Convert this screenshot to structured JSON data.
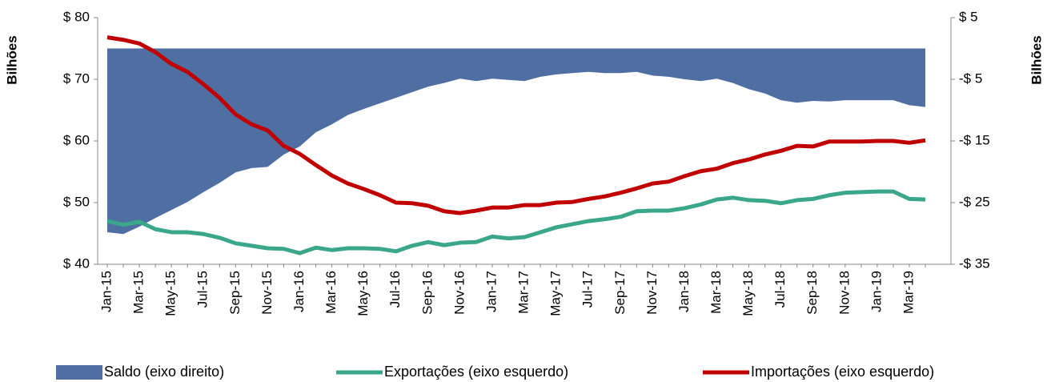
{
  "chart_data": {
    "type": "line",
    "y_label": "Bilhões",
    "y2_label": "Bilhões",
    "categories": [
      "Jan-15",
      null,
      "Mar-15",
      null,
      "May-15",
      null,
      "Jul-15",
      null,
      "Sep-15",
      null,
      "Nov-15",
      null,
      "Jan-16",
      null,
      "Mar-16",
      null,
      "May-16",
      null,
      "Jul-16",
      null,
      "Sep-16",
      null,
      "Nov-16",
      null,
      "Jan-17",
      null,
      "Mar-17",
      null,
      "May-17",
      null,
      "Jul-17",
      null,
      "Sep-17",
      null,
      "Nov-17",
      null,
      "Jan-18",
      null,
      "Mar-18",
      null,
      "May-18",
      null,
      "Jul-18",
      null,
      "Sep-18",
      null,
      "Nov-18",
      null,
      "Jan-19",
      null,
      "Mar-19",
      null
    ],
    "ylim": [
      40,
      80
    ],
    "yticks": [
      {
        "value": 40,
        "label": "$ 40"
      },
      {
        "value": 50,
        "label": "$ 50"
      },
      {
        "value": 60,
        "label": "$ 60"
      },
      {
        "value": 70,
        "label": "$ 70"
      },
      {
        "value": 80,
        "label": "$ 80"
      }
    ],
    "y2lim": [
      -35,
      5
    ],
    "y2ticks": [
      {
        "value": -35,
        "label": "-$ 35"
      },
      {
        "value": -25,
        "label": "-$ 25"
      },
      {
        "value": -15,
        "label": "-$ 15"
      },
      {
        "value": -5,
        "label": "-$ 5"
      },
      {
        "value": 5,
        "label": "$ 5"
      }
    ],
    "legend": "bottom",
    "series": [
      {
        "name": "Saldo (eixo direito)",
        "type": "area",
        "axis": "y2",
        "color": "#4f6fa3",
        "values": [
          -29.8,
          -30.1,
          -28.9,
          -27.5,
          -26.2,
          -24.9,
          -23.3,
          -21.8,
          -20.1,
          -19.4,
          -19.2,
          -17.2,
          -15.9,
          -13.6,
          -12.3,
          -10.8,
          -9.8,
          -8.9,
          -8.0,
          -7.1,
          -6.2,
          -5.6,
          -4.9,
          -5.3,
          -4.9,
          -5.1,
          -5.3,
          -4.6,
          -4.2,
          -4.0,
          -3.8,
          -4.0,
          -4.0,
          -3.8,
          -4.4,
          -4.6,
          -5.0,
          -5.3,
          -4.9,
          -5.6,
          -6.6,
          -7.3,
          -8.4,
          -8.8,
          -8.5,
          -8.6,
          -8.4,
          -8.4,
          -8.4,
          -8.4,
          -9.2,
          -9.5
        ]
      },
      {
        "name": "Exportações (eixo esquerdo)",
        "type": "line",
        "color": "#3aa68a",
        "values": [
          47.0,
          46.4,
          46.9,
          45.7,
          45.2,
          45.2,
          44.9,
          44.3,
          43.4,
          43.0,
          42.6,
          42.5,
          41.8,
          42.7,
          42.3,
          42.6,
          42.6,
          42.5,
          42.1,
          43.0,
          43.6,
          43.1,
          43.5,
          43.6,
          44.5,
          44.2,
          44.4,
          45.2,
          46.0,
          46.5,
          47.0,
          47.3,
          47.7,
          48.6,
          48.7,
          48.7,
          49.1,
          49.7,
          50.5,
          50.8,
          50.4,
          50.3,
          49.9,
          50.4,
          50.6,
          51.2,
          51.6,
          51.7,
          51.8,
          51.8,
          50.6,
          50.5
        ]
      },
      {
        "name": "Importações (eixo esquerdo)",
        "type": "line",
        "color": "#c00000",
        "values": [
          76.8,
          76.4,
          75.8,
          74.4,
          72.5,
          71.2,
          69.2,
          67.0,
          64.3,
          62.7,
          61.7,
          59.2,
          57.9,
          56.1,
          54.4,
          53.1,
          52.2,
          51.2,
          50.0,
          49.9,
          49.5,
          48.6,
          48.3,
          48.7,
          49.2,
          49.2,
          49.6,
          49.6,
          50.0,
          50.1,
          50.6,
          51.0,
          51.6,
          52.3,
          53.1,
          53.4,
          54.3,
          55.1,
          55.5,
          56.4,
          57.0,
          57.8,
          58.4,
          59.2,
          59.1,
          59.9,
          59.9,
          59.9,
          60.0,
          60.0,
          59.7,
          60.1
        ]
      }
    ]
  }
}
